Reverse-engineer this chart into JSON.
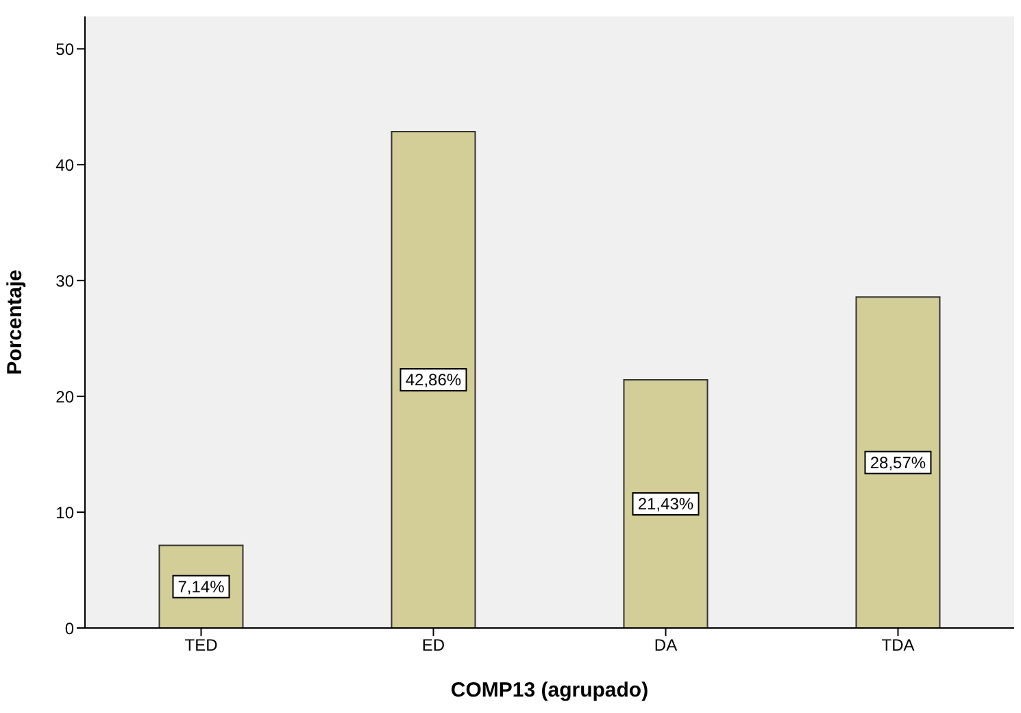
{
  "chart_data": {
    "type": "bar",
    "xlabel": "COMP13 (agrupado)",
    "ylabel": "Porcentaje",
    "categories": [
      "TED",
      "ED",
      "DA",
      "TDA"
    ],
    "values": [
      7.14,
      42.86,
      21.43,
      28.57
    ],
    "value_labels": [
      "7,14%",
      "42,86%",
      "21,43%",
      "28,57%"
    ],
    "color": "#d3ce98",
    "ylim": [
      0,
      52.8
    ],
    "yticks": [
      0,
      10,
      20,
      30,
      40,
      50
    ]
  }
}
